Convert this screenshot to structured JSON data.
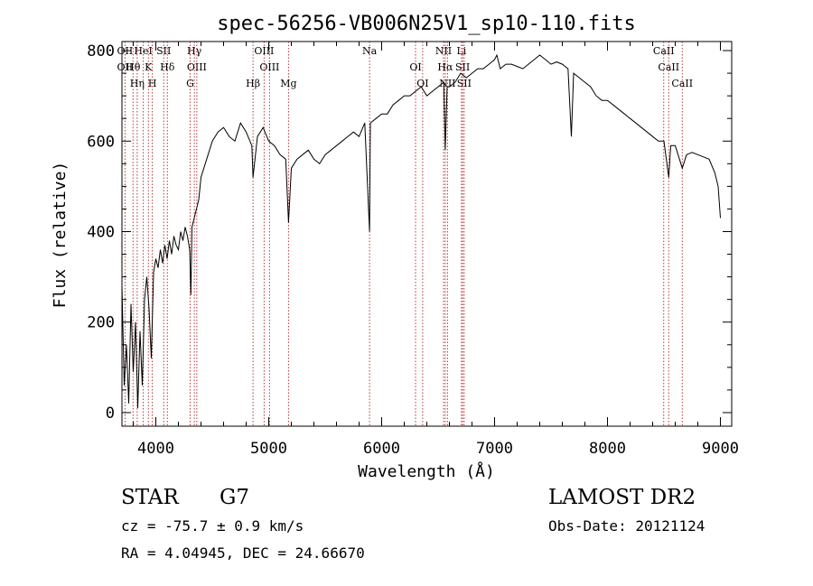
{
  "chart_data": {
    "type": "line",
    "title": "spec-56256-VB006N25V1_sp10-110.fits",
    "xlabel": "Wavelength (Å)",
    "ylabel": "Flux (relative)",
    "xlim": [
      3700,
      9100
    ],
    "ylim": [
      -30,
      820
    ],
    "x_ticks": [
      4000,
      5000,
      6000,
      7000,
      8000,
      9000
    ],
    "y_ticks": [
      0,
      200,
      400,
      600,
      800
    ],
    "x_tick_labels": [
      "4000",
      "5000",
      "6000",
      "7000",
      "8000",
      "9000"
    ],
    "y_tick_labels": [
      "0",
      "200",
      "400",
      "600",
      "800"
    ],
    "grid": false,
    "line_color": "#000000",
    "marker_color": "#b22222",
    "series": [
      {
        "x": [
          3700,
          3720,
          3740,
          3760,
          3780,
          3800,
          3820,
          3840,
          3860,
          3880,
          3900,
          3920,
          3940,
          3960,
          3980,
          4000,
          4020,
          4040,
          4060,
          4080,
          4100,
          4120,
          4140,
          4160,
          4180,
          4200,
          4220,
          4240,
          4260,
          4280,
          4300,
          4310,
          4320,
          4340,
          4360,
          4380,
          4400,
          4450,
          4500,
          4550,
          4600,
          4650,
          4700,
          4750,
          4800,
          4850,
          4861,
          4900,
          4950,
          5000,
          5050,
          5100,
          5150,
          5175,
          5200,
          5250,
          5300,
          5350,
          5400,
          5450,
          5500,
          5550,
          5600,
          5650,
          5700,
          5750,
          5800,
          5850,
          5893,
          5900,
          5950,
          6000,
          6050,
          6100,
          6150,
          6200,
          6250,
          6300,
          6350,
          6400,
          6450,
          6500,
          6550,
          6563,
          6580,
          6600,
          6650,
          6700,
          6750,
          6800,
          6850,
          6900,
          6950,
          7000,
          7020,
          7050,
          7100,
          7150,
          7200,
          7250,
          7300,
          7350,
          7400,
          7450,
          7500,
          7550,
          7600,
          7650,
          7680,
          7700,
          7750,
          7800,
          7850,
          7900,
          7950,
          8000,
          8050,
          8100,
          8150,
          8200,
          8250,
          8300,
          8350,
          8400,
          8450,
          8500,
          8542,
          8560,
          8600,
          8662,
          8700,
          8750,
          8800,
          8850,
          8900,
          8950,
          8980,
          9000
        ],
        "y": [
          280,
          60,
          150,
          20,
          240,
          90,
          200,
          10,
          180,
          60,
          250,
          300,
          230,
          120,
          310,
          340,
          320,
          360,
          330,
          370,
          340,
          380,
          350,
          390,
          370,
          360,
          400,
          380,
          410,
          390,
          360,
          260,
          410,
          430,
          450,
          470,
          520,
          560,
          600,
          620,
          630,
          610,
          600,
          640,
          620,
          590,
          520,
          610,
          630,
          600,
          590,
          570,
          560,
          420,
          540,
          560,
          570,
          580,
          560,
          550,
          570,
          580,
          590,
          600,
          610,
          620,
          610,
          640,
          400,
          640,
          650,
          660,
          660,
          680,
          690,
          700,
          700,
          710,
          720,
          700,
          710,
          720,
          730,
          580,
          720,
          720,
          730,
          750,
          740,
          750,
          760,
          760,
          770,
          780,
          790,
          760,
          770,
          770,
          765,
          760,
          770,
          780,
          790,
          780,
          770,
          775,
          770,
          760,
          610,
          750,
          740,
          730,
          720,
          700,
          690,
          690,
          680,
          670,
          660,
          650,
          640,
          630,
          620,
          610,
          600,
          600,
          520,
          590,
          590,
          540,
          570,
          575,
          570,
          565,
          560,
          530,
          500,
          430
        ]
      }
    ],
    "line_markers": [
      {
        "wavelength": 3727,
        "labels": [
          "OII",
          "OII"
        ]
      },
      {
        "wavelength": 3798,
        "labels": [
          "Hθ"
        ]
      },
      {
        "wavelength": 3835,
        "labels": [
          "Hη"
        ]
      },
      {
        "wavelength": 3889,
        "labels": [
          "HeI"
        ]
      },
      {
        "wavelength": 3934,
        "labels": [
          "K"
        ]
      },
      {
        "wavelength": 3969,
        "labels": [
          "H"
        ]
      },
      {
        "wavelength": 4070,
        "labels": [
          "SII"
        ]
      },
      {
        "wavelength": 4102,
        "labels": [
          "Hδ"
        ]
      },
      {
        "wavelength": 4304,
        "labels": [
          "G"
        ]
      },
      {
        "wavelength": 4341,
        "labels": [
          "Hγ"
        ]
      },
      {
        "wavelength": 4363,
        "labels": [
          "OIII"
        ]
      },
      {
        "wavelength": 4861,
        "labels": [
          "Hβ"
        ]
      },
      {
        "wavelength": 4959,
        "labels": [
          "OIII"
        ]
      },
      {
        "wavelength": 5007,
        "labels": [
          "OIII"
        ]
      },
      {
        "wavelength": 5175,
        "labels": [
          "Mg"
        ]
      },
      {
        "wavelength": 5893,
        "labels": [
          "Na"
        ]
      },
      {
        "wavelength": 6300,
        "labels": [
          "OI"
        ]
      },
      {
        "wavelength": 6363,
        "labels": [
          "OI"
        ]
      },
      {
        "wavelength": 6548,
        "labels": [
          "NII"
        ]
      },
      {
        "wavelength": 6563,
        "labels": [
          "Hα"
        ]
      },
      {
        "wavelength": 6583,
        "labels": [
          "NII"
        ]
      },
      {
        "wavelength": 6707,
        "labels": [
          "Li"
        ]
      },
      {
        "wavelength": 6717,
        "labels": [
          "SII"
        ]
      },
      {
        "wavelength": 6731,
        "labels": [
          "SII"
        ]
      },
      {
        "wavelength": 8498,
        "labels": [
          "CaII"
        ]
      },
      {
        "wavelength": 8542,
        "labels": [
          "CaII"
        ]
      },
      {
        "wavelength": 8662,
        "labels": [
          "CaII"
        ]
      }
    ]
  },
  "info": {
    "object_class": "STAR",
    "subclass": "G7",
    "survey": "LAMOST DR2",
    "cz": "cz = -75.7 ± 0.9 km/s",
    "obs_date": "Obs-Date: 20121124",
    "radec": "RA =   4.04945, DEC =  24.66670"
  }
}
